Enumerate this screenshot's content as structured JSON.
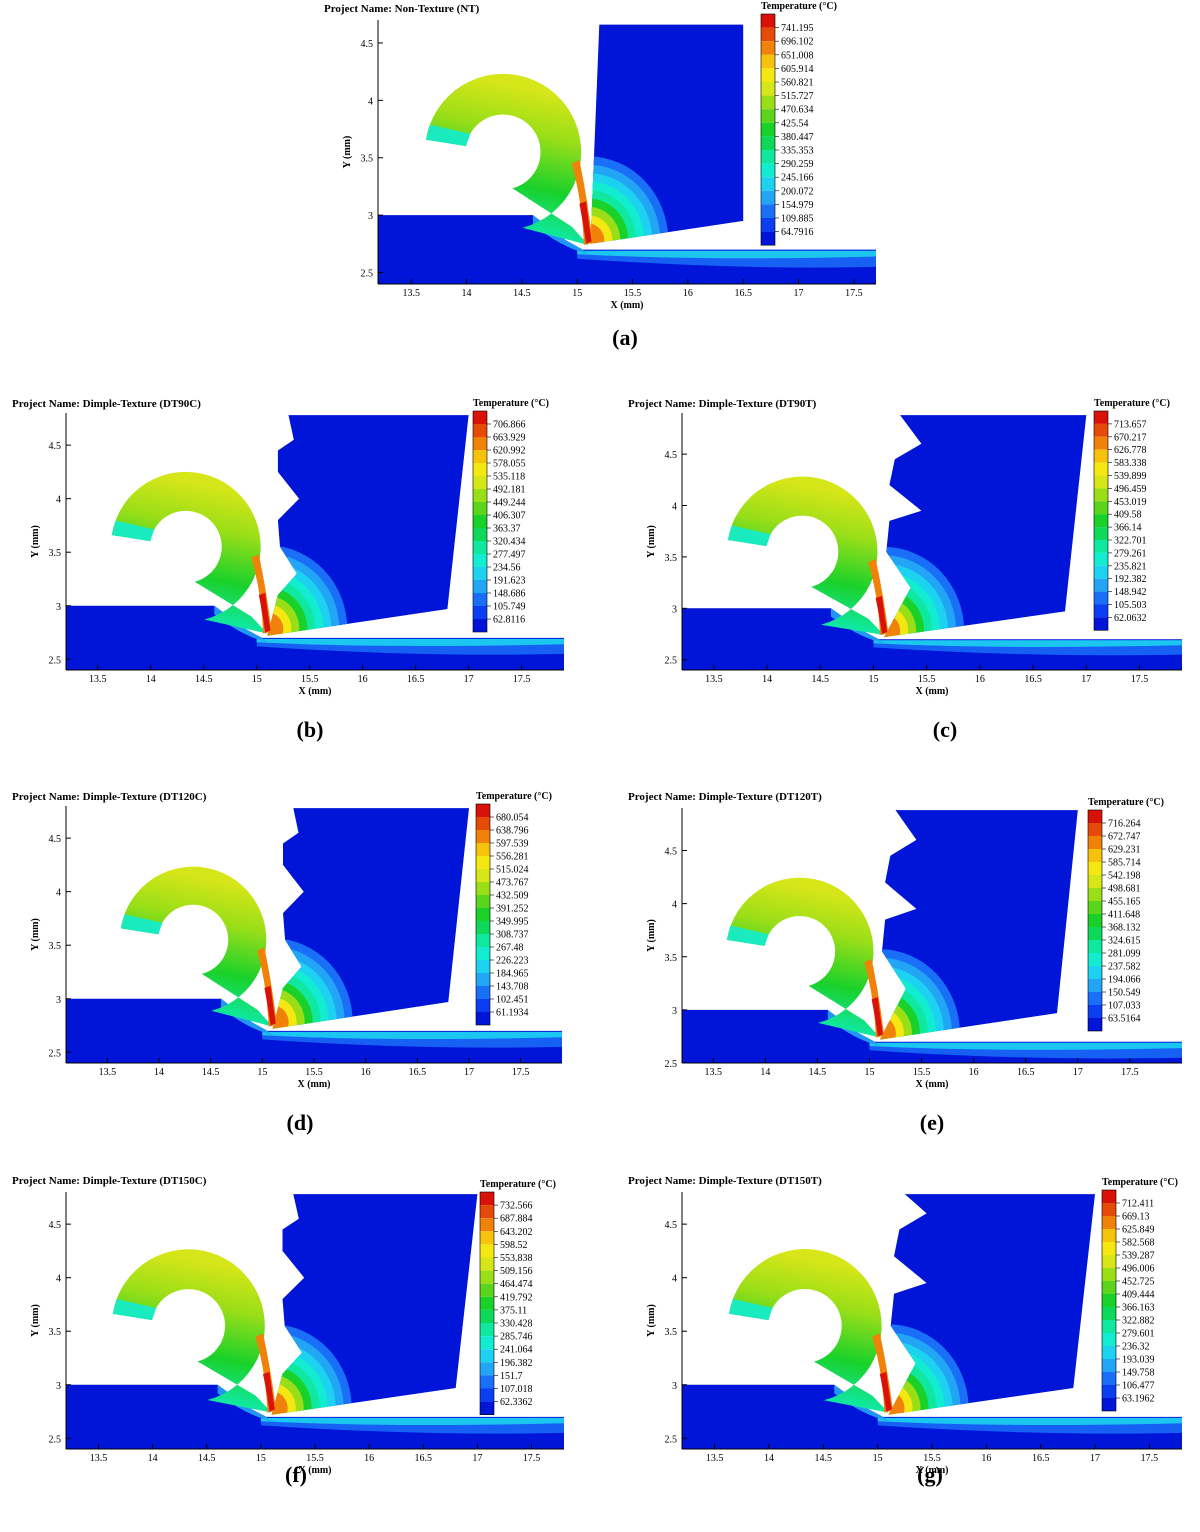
{
  "x_axis_label": "X (mm)",
  "y_axis_label": "Y (mm)",
  "legend_title": "Temperature (°C)",
  "project_prefix": "Project Name: ",
  "colors": [
    "#0015d8",
    "#0a3ef0",
    "#1a6ff8",
    "#23a5f5",
    "#1cd2f0",
    "#12ecd0",
    "#10e8a0",
    "#0ed85a",
    "#1ad12a",
    "#5ad51c",
    "#9ade18",
    "#d6e618",
    "#f5e812",
    "#f5c30e",
    "#f0820a",
    "#e54a08",
    "#d81208"
  ],
  "chart_data": [
    {
      "id": "a",
      "label": "(a)",
      "type": "contour",
      "title": "Non-Texture (NT)",
      "xlabel": "X (mm)",
      "ylabel": "Y (mm)",
      "xlim": [
        13.2,
        17.7
      ],
      "ylim": [
        2.4,
        4.7
      ],
      "xticks": [
        "13.5",
        "14",
        "14.5",
        "15",
        "15.5",
        "16",
        "16.5",
        "17",
        "17.5"
      ],
      "yticks": [
        "2.5",
        "3",
        "3.5",
        "4",
        "4.5"
      ],
      "tool_texture": "none",
      "legend_title": "Temperature (°C)",
      "legend_values": [
        "741.195",
        "696.102",
        "651.008",
        "605.914",
        "560.821",
        "515.727",
        "470.634",
        "425.54",
        "380.447",
        "335.353",
        "290.259",
        "245.166",
        "200.072",
        "154.979",
        "109.885",
        "64.7916"
      ]
    },
    {
      "id": "b",
      "label": "(b)",
      "type": "contour",
      "title": "Dimple-Texture (DT90C)",
      "xlabel": "X (mm)",
      "ylabel": "Y (mm)",
      "xlim": [
        13.2,
        17.9
      ],
      "ylim": [
        2.4,
        4.8
      ],
      "xticks": [
        "13.5",
        "14",
        "14.5",
        "15",
        "15.5",
        "16",
        "16.5",
        "17",
        "17.5"
      ],
      "yticks": [
        "2.5",
        "3",
        "3.5",
        "4",
        "4.5"
      ],
      "tool_texture": "round",
      "legend_title": "Temperature (°C)",
      "legend_values": [
        "706.866",
        "663.929",
        "620.992",
        "578.055",
        "535.118",
        "492.181",
        "449.244",
        "406.307",
        "363.37",
        "320.434",
        "277.497",
        "234.56",
        "191.623",
        "148.686",
        "105.749",
        "62.8116"
      ]
    },
    {
      "id": "c",
      "label": "(c)",
      "type": "contour",
      "title": "Dimple-Texture (DT90T)",
      "xlabel": "X (mm)",
      "ylabel": "Y (mm)",
      "xlim": [
        13.2,
        17.9
      ],
      "ylim": [
        2.4,
        4.9
      ],
      "xticks": [
        "13.5",
        "14",
        "14.5",
        "15",
        "15.5",
        "16",
        "16.5",
        "17",
        "17.5"
      ],
      "yticks": [
        "2.5",
        "3",
        "3.5",
        "4",
        "4.5"
      ],
      "tool_texture": "triangle",
      "legend_title": "Temperature (°C)",
      "legend_values": [
        "713.657",
        "670.217",
        "626.778",
        "583.338",
        "539.899",
        "496.459",
        "453.019",
        "409.58",
        "366.14",
        "322.701",
        "279.261",
        "235.821",
        "192.382",
        "148.942",
        "105.503",
        "62.0632"
      ]
    },
    {
      "id": "d",
      "label": "(d)",
      "type": "contour",
      "title": "Dimple-Texture (DT120C)",
      "xlabel": "X (mm)",
      "ylabel": "Y (mm)",
      "xlim": [
        13.1,
        17.9
      ],
      "ylim": [
        2.4,
        4.8
      ],
      "xticks": [
        "13.5",
        "14",
        "14.5",
        "15",
        "15.5",
        "16",
        "16.5",
        "17",
        "17.5"
      ],
      "yticks": [
        "2.5",
        "3",
        "3.5",
        "4",
        "4.5"
      ],
      "tool_texture": "round",
      "legend_title": "Temperature (°C)",
      "legend_values": [
        "680.054",
        "638.796",
        "597.539",
        "556.281",
        "515.024",
        "473.767",
        "432.509",
        "391.252",
        "349.995",
        "308.737",
        "267.48",
        "226.223",
        "184.965",
        "143.708",
        "102.451",
        "61.1934"
      ]
    },
    {
      "id": "e",
      "label": "(e)",
      "type": "contour",
      "title": "Dimple-Texture (DT120T)",
      "xlabel": "X (mm)",
      "ylabel": "Y (mm)",
      "xlim": [
        13.2,
        18.0
      ],
      "ylim": [
        2.5,
        4.9
      ],
      "xticks": [
        "13.5",
        "14",
        "14.5",
        "15",
        "15.5",
        "16",
        "16.5",
        "17",
        "17.5"
      ],
      "yticks": [
        "2.5",
        "3",
        "3.5",
        "4",
        "4.5"
      ],
      "tool_texture": "triangle",
      "legend_title": "Temperature (°C)",
      "legend_values": [
        "716.264",
        "672.747",
        "629.231",
        "585.714",
        "542.198",
        "498.681",
        "455.165",
        "411.648",
        "368.132",
        "324.615",
        "281.099",
        "237.582",
        "194.066",
        "150.549",
        "107.033",
        "63.5164"
      ]
    },
    {
      "id": "f",
      "label": "(f)",
      "type": "contour",
      "title": "Dimple-Texture (DT150C)",
      "xlabel": "X (mm)",
      "ylabel": "Y (mm)",
      "xlim": [
        13.2,
        17.8
      ],
      "ylim": [
        2.4,
        4.8
      ],
      "xticks": [
        "13.5",
        "14",
        "14.5",
        "15",
        "15.5",
        "16",
        "16.5",
        "17",
        "17.5"
      ],
      "yticks": [
        "2.5",
        "3",
        "3.5",
        "4",
        "4.5"
      ],
      "tool_texture": "round",
      "legend_title": "Temperature (°C)",
      "legend_values": [
        "732.566",
        "687.884",
        "643.202",
        "598.52",
        "553.838",
        "509.156",
        "464.474",
        "419.792",
        "375.11",
        "330.428",
        "285.746",
        "241.064",
        "196.382",
        "151.7",
        "107.018",
        "62.3362"
      ]
    },
    {
      "id": "g",
      "label": "(g)",
      "type": "contour",
      "title": "Dimple-Texture (DT150T)",
      "xlabel": "X (mm)",
      "ylabel": "Y (mm)",
      "xlim": [
        13.2,
        17.8
      ],
      "ylim": [
        2.4,
        4.8
      ],
      "xticks": [
        "13.5",
        "14",
        "14.5",
        "15",
        "15.5",
        "16",
        "16.5",
        "17",
        "17.5"
      ],
      "yticks": [
        "2.5",
        "3",
        "3.5",
        "4",
        "4.5"
      ],
      "tool_texture": "triangle",
      "legend_title": "Temperature (°C)",
      "legend_values": [
        "712.411",
        "669.13",
        "625.849",
        "582.568",
        "539.287",
        "496.006",
        "452.725",
        "409.444",
        "366.163",
        "322.882",
        "279.601",
        "236.32",
        "193.039",
        "149.758",
        "106.477",
        "63.1962"
      ]
    }
  ]
}
